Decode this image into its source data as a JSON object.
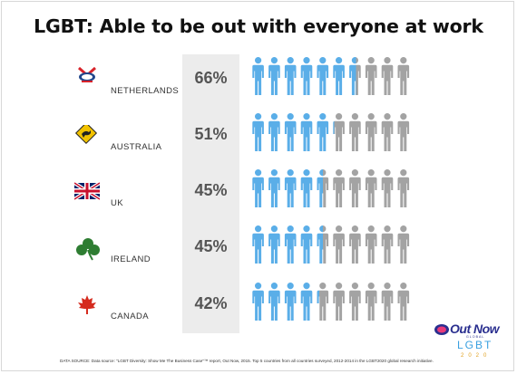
{
  "chart_data": {
    "type": "bar",
    "title": "LGBT: Able to be out with everyone at work",
    "categories": [
      "NETHERLANDS",
      "AUSTRALIA",
      "UK",
      "IRELAND",
      "CANADA"
    ],
    "values": [
      66,
      51,
      45,
      45,
      42
    ],
    "value_labels": [
      "66%",
      "51%",
      "45%",
      "45%",
      "42%"
    ],
    "unit": "%",
    "icons_per_row": 10,
    "colors": {
      "filled": "#5aaee8",
      "empty": "#a3a3a3"
    },
    "flags": [
      "netherlands-flag-icon",
      "australia-sign-icon",
      "uk-flag-icon",
      "ireland-shamrock-icon",
      "canada-maple-icon"
    ]
  },
  "footer": {
    "source": "DATA SOURCE: Data source: \"LGBT Diversity: Show Me The Business Case\"™ report, Out Now, 2015. Top 5 countries from all countries surveyed, 2012-2014 in the LGBT2020 global research initiative."
  },
  "logo": {
    "brand": "Out Now",
    "sub": "GLOBAL",
    "program": "LGBT",
    "year": "2020"
  }
}
